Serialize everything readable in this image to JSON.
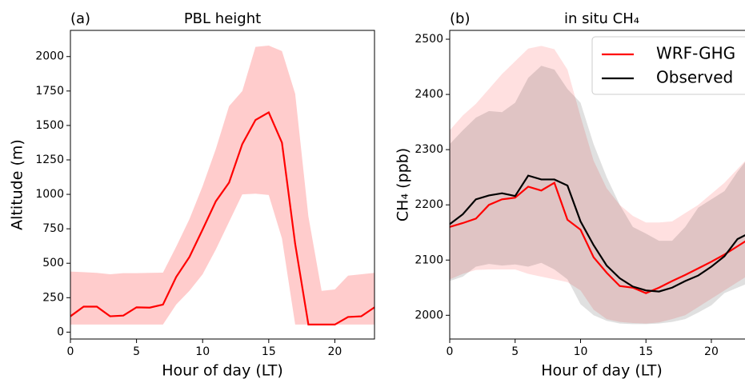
{
  "chart_data": [
    {
      "type": "line",
      "label": "(a)",
      "title": "PBL height",
      "xlabel": "Hour of day (LT)",
      "ylabel": "Altitude (m)",
      "x": [
        0,
        1,
        2,
        3,
        4,
        5,
        6,
        7,
        8,
        9,
        10,
        11,
        12,
        13,
        14,
        15,
        16,
        17,
        18,
        19,
        20,
        21,
        22,
        23
      ],
      "xlim": [
        0,
        23
      ],
      "xticks": [
        0,
        5,
        10,
        15,
        20
      ],
      "ylim": [
        -50,
        2190
      ],
      "yticks": [
        0,
        250,
        500,
        750,
        1000,
        1250,
        1500,
        1750,
        2000
      ],
      "band_alpha": 0.2,
      "series": [
        {
          "color": "#ff0000",
          "values": [
            115,
            185,
            185,
            115,
            120,
            180,
            178,
            200,
            400,
            545,
            745,
            950,
            1085,
            1365,
            1540,
            1595,
            1375,
            640,
            55,
            55,
            55,
            110,
            115,
            180
          ],
          "upper": [
            440,
            435,
            430,
            420,
            428,
            428,
            430,
            432,
            620,
            820,
            1060,
            1330,
            1640,
            1750,
            2070,
            2080,
            2040,
            1730,
            840,
            300,
            310,
            410,
            420,
            430
          ],
          "lower": [
            55,
            55,
            55,
            55,
            55,
            55,
            55,
            55,
            200,
            300,
            420,
            600,
            800,
            1000,
            1005,
            995,
            680,
            55,
            55,
            55,
            55,
            55,
            55,
            55
          ]
        }
      ]
    },
    {
      "type": "line",
      "label": "(b)",
      "title": "in situ CH₄",
      "xlabel": "Hour of day (LT)",
      "ylabel": "CH₄ (ppb)",
      "x": [
        0,
        1,
        2,
        3,
        4,
        5,
        6,
        7,
        8,
        9,
        10,
        11,
        12,
        13,
        14,
        15,
        16,
        17,
        18,
        19,
        20,
        21,
        22,
        23
      ],
      "xlim": [
        0,
        23
      ],
      "xticks": [
        0,
        5,
        10,
        15,
        20
      ],
      "ylim": [
        1957,
        2516
      ],
      "yticks": [
        2000,
        2100,
        2200,
        2300,
        2400,
        2500
      ],
      "band_alpha": 0.12,
      "legend": "upper right",
      "series": [
        {
          "name": "WRF-GHG",
          "color": "#ff0000",
          "values": [
            2160,
            2167,
            2175,
            2200,
            2210,
            2213,
            2233,
            2226,
            2240,
            2173,
            2155,
            2105,
            2077,
            2053,
            2050,
            2040,
            2050,
            2062,
            2073,
            2085,
            2097,
            2110,
            2125,
            2140
          ],
          "upper": [
            2335,
            2362,
            2383,
            2410,
            2437,
            2460,
            2483,
            2488,
            2482,
            2445,
            2360,
            2280,
            2230,
            2200,
            2180,
            2168,
            2168,
            2170,
            2185,
            2200,
            2220,
            2240,
            2265,
            2290
          ],
          "lower": [
            2065,
            2075,
            2082,
            2083,
            2083,
            2083,
            2075,
            2070,
            2065,
            2060,
            2045,
            2010,
            1993,
            1988,
            1986,
            1985,
            1987,
            1993,
            2000,
            2015,
            2030,
            2045,
            2060,
            2075
          ]
        },
        {
          "name": "Observed",
          "color": "#000000",
          "values": [
            2165,
            2183,
            2210,
            2217,
            2221,
            2216,
            2253,
            2246,
            2246,
            2235,
            2170,
            2127,
            2090,
            2067,
            2052,
            2045,
            2043,
            2050,
            2062,
            2072,
            2088,
            2107,
            2138,
            2150
          ],
          "upper": [
            2310,
            2335,
            2358,
            2370,
            2368,
            2385,
            2430,
            2452,
            2445,
            2410,
            2385,
            2310,
            2250,
            2200,
            2160,
            2148,
            2135,
            2135,
            2160,
            2195,
            2210,
            2225,
            2260,
            2290
          ],
          "lower": [
            2062,
            2070,
            2088,
            2093,
            2090,
            2092,
            2088,
            2095,
            2083,
            2065,
            2020,
            2000,
            1990,
            1985,
            1984,
            1984,
            1985,
            1988,
            1993,
            2005,
            2018,
            2040,
            2050,
            2060
          ]
        }
      ]
    }
  ]
}
